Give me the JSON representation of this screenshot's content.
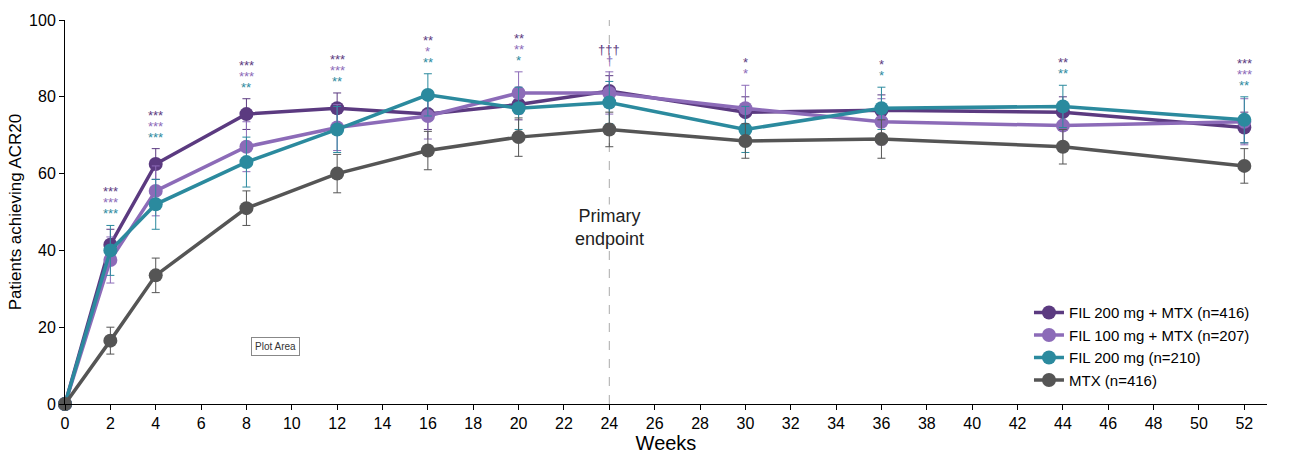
{
  "chart_data": {
    "type": "line",
    "x_label": "Weeks",
    "y_label": "Patients achieving ACR20",
    "xlim": [
      0,
      53
    ],
    "xticks": [
      0,
      2,
      4,
      6,
      8,
      10,
      12,
      14,
      16,
      18,
      20,
      22,
      24,
      26,
      28,
      30,
      32,
      34,
      36,
      38,
      40,
      42,
      44,
      46,
      48,
      50,
      52
    ],
    "ylim": [
      0,
      100
    ],
    "yticks": [
      0,
      20,
      40,
      60,
      80,
      100
    ],
    "grid": false,
    "legend": "bottom right",
    "marker": "circle",
    "x": [
      0,
      2,
      4,
      8,
      12,
      16,
      20,
      24,
      30,
      36,
      44,
      52
    ],
    "series": [
      {
        "name": "FIL 200 mg + MTX (n=416)",
        "color": "#5b3a80",
        "values": [
          0,
          41.5,
          62.5,
          75.5,
          77,
          75.5,
          78,
          81.5,
          76,
          76.5,
          76,
          72
        ],
        "errors": [
          0,
          4,
          4,
          4,
          4,
          4,
          4,
          4,
          4,
          4,
          4,
          4
        ]
      },
      {
        "name": "FIL 100 mg + MTX (n=207)",
        "color": "#8c6bb8",
        "values": [
          0,
          37.5,
          55.5,
          67,
          72,
          75,
          81,
          81,
          77,
          73.5,
          72.5,
          73.5
        ],
        "errors": [
          0,
          6,
          6.5,
          6.5,
          6,
          6,
          5.5,
          5.5,
          6,
          6,
          6,
          6
        ]
      },
      {
        "name": "FIL 200 mg (n=210)",
        "color": "#2b8a9e",
        "values": [
          0,
          40,
          52,
          63,
          71.5,
          80.5,
          77,
          78.5,
          71.5,
          77,
          77.5,
          74
        ],
        "errors": [
          0,
          6.5,
          6.5,
          6.5,
          6,
          5.5,
          5.5,
          5.5,
          6,
          5.5,
          5.5,
          6
        ]
      },
      {
        "name": "MTX (n=416)",
        "color": "#555555",
        "values": [
          0,
          16.5,
          33.5,
          51,
          60,
          66,
          69.5,
          71.5,
          68.5,
          69,
          67,
          62
        ],
        "errors": [
          0,
          3.5,
          4.5,
          4.5,
          5,
          5,
          5,
          4.5,
          4.5,
          5,
          4.5,
          4.5
        ]
      }
    ],
    "significance": [
      {
        "x": 2,
        "marks": [
          {
            "text": "***",
            "series": "FIL 200 mg + MTX (n=416)"
          },
          {
            "text": "***",
            "series": "FIL 100 mg + MTX (n=207)"
          },
          {
            "text": "***",
            "series": "FIL 200 mg (n=210)"
          }
        ]
      },
      {
        "x": 4,
        "marks": [
          {
            "text": "***",
            "series": "FIL 200 mg + MTX (n=416)"
          },
          {
            "text": "***",
            "series": "FIL 100 mg + MTX (n=207)"
          },
          {
            "text": "***",
            "series": "FIL 200 mg (n=210)"
          }
        ]
      },
      {
        "x": 8,
        "marks": [
          {
            "text": "***",
            "series": "FIL 200 mg + MTX (n=416)"
          },
          {
            "text": "***",
            "series": "FIL 100 mg + MTX (n=207)"
          },
          {
            "text": "**",
            "series": "FIL 200 mg (n=210)"
          }
        ]
      },
      {
        "x": 12,
        "marks": [
          {
            "text": "***",
            "series": "FIL 200 mg + MTX (n=416)"
          },
          {
            "text": "***",
            "series": "FIL 100 mg + MTX (n=207)"
          },
          {
            "text": "**",
            "series": "FIL 200 mg (n=210)"
          }
        ]
      },
      {
        "x": 16,
        "marks": [
          {
            "text": "**",
            "series": "FIL 200 mg + MTX (n=416)"
          },
          {
            "text": "*",
            "series": "FIL 100 mg + MTX (n=207)"
          },
          {
            "text": "**",
            "series": "FIL 200 mg (n=210)"
          }
        ]
      },
      {
        "x": 20,
        "marks": [
          {
            "text": "**",
            "series": "FIL 200 mg + MTX (n=416)"
          },
          {
            "text": "**",
            "series": "FIL 100 mg + MTX (n=207)"
          },
          {
            "text": "*",
            "series": "FIL 200 mg (n=210)"
          }
        ]
      },
      {
        "x": 24,
        "marks": [
          {
            "text": "†††",
            "series": "FIL 200 mg + MTX (n=416)"
          },
          {
            "text": "†",
            "series": "FIL 100 mg + MTX (n=207)"
          }
        ]
      },
      {
        "x": 30,
        "marks": [
          {
            "text": "*",
            "series": "FIL 200 mg + MTX (n=416)"
          },
          {
            "text": "*",
            "series": "FIL 100 mg + MTX (n=207)"
          }
        ]
      },
      {
        "x": 36,
        "marks": [
          {
            "text": "*",
            "series": "FIL 200 mg + MTX (n=416)"
          },
          {
            "text": "*",
            "series": "FIL 200 mg (n=210)"
          }
        ]
      },
      {
        "x": 44,
        "marks": [
          {
            "text": "**",
            "series": "FIL 200 mg + MTX (n=416)"
          },
          {
            "text": "**",
            "series": "FIL 200 mg (n=210)"
          }
        ]
      },
      {
        "x": 52,
        "marks": [
          {
            "text": "***",
            "series": "FIL 200 mg + MTX (n=416)"
          },
          {
            "text": "***",
            "series": "FIL 100 mg + MTX (n=207)"
          },
          {
            "text": "**",
            "series": "FIL 200 mg (n=210)"
          }
        ]
      }
    ],
    "reference_line": {
      "x": 24,
      "label": "Primary endpoint"
    },
    "annotations": [
      {
        "text": "Plot Area",
        "x": 9.3,
        "y": 15
      }
    ]
  }
}
